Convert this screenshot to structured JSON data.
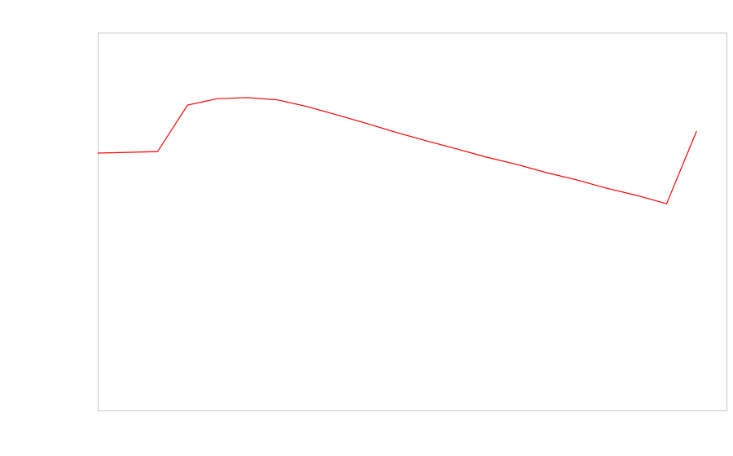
{
  "chart_data": {
    "type": "line",
    "x": [
      0,
      1,
      2,
      3,
      4,
      5,
      6,
      7,
      8,
      9,
      10,
      11,
      12,
      13,
      14,
      15,
      16,
      17,
      18,
      19,
      20
    ],
    "values": [
      68.1,
      68.3,
      68.5,
      80.8,
      82.5,
      82.8,
      82.2,
      80.4,
      78.2,
      75.9,
      73.5,
      71.3,
      69.2,
      67.0,
      65.1,
      62.9,
      61.0,
      58.8,
      56.9,
      54.7,
      73.9
    ],
    "color": "#ff0000",
    "xlim": [
      0,
      21
    ],
    "ylim": [
      0,
      100
    ]
  }
}
